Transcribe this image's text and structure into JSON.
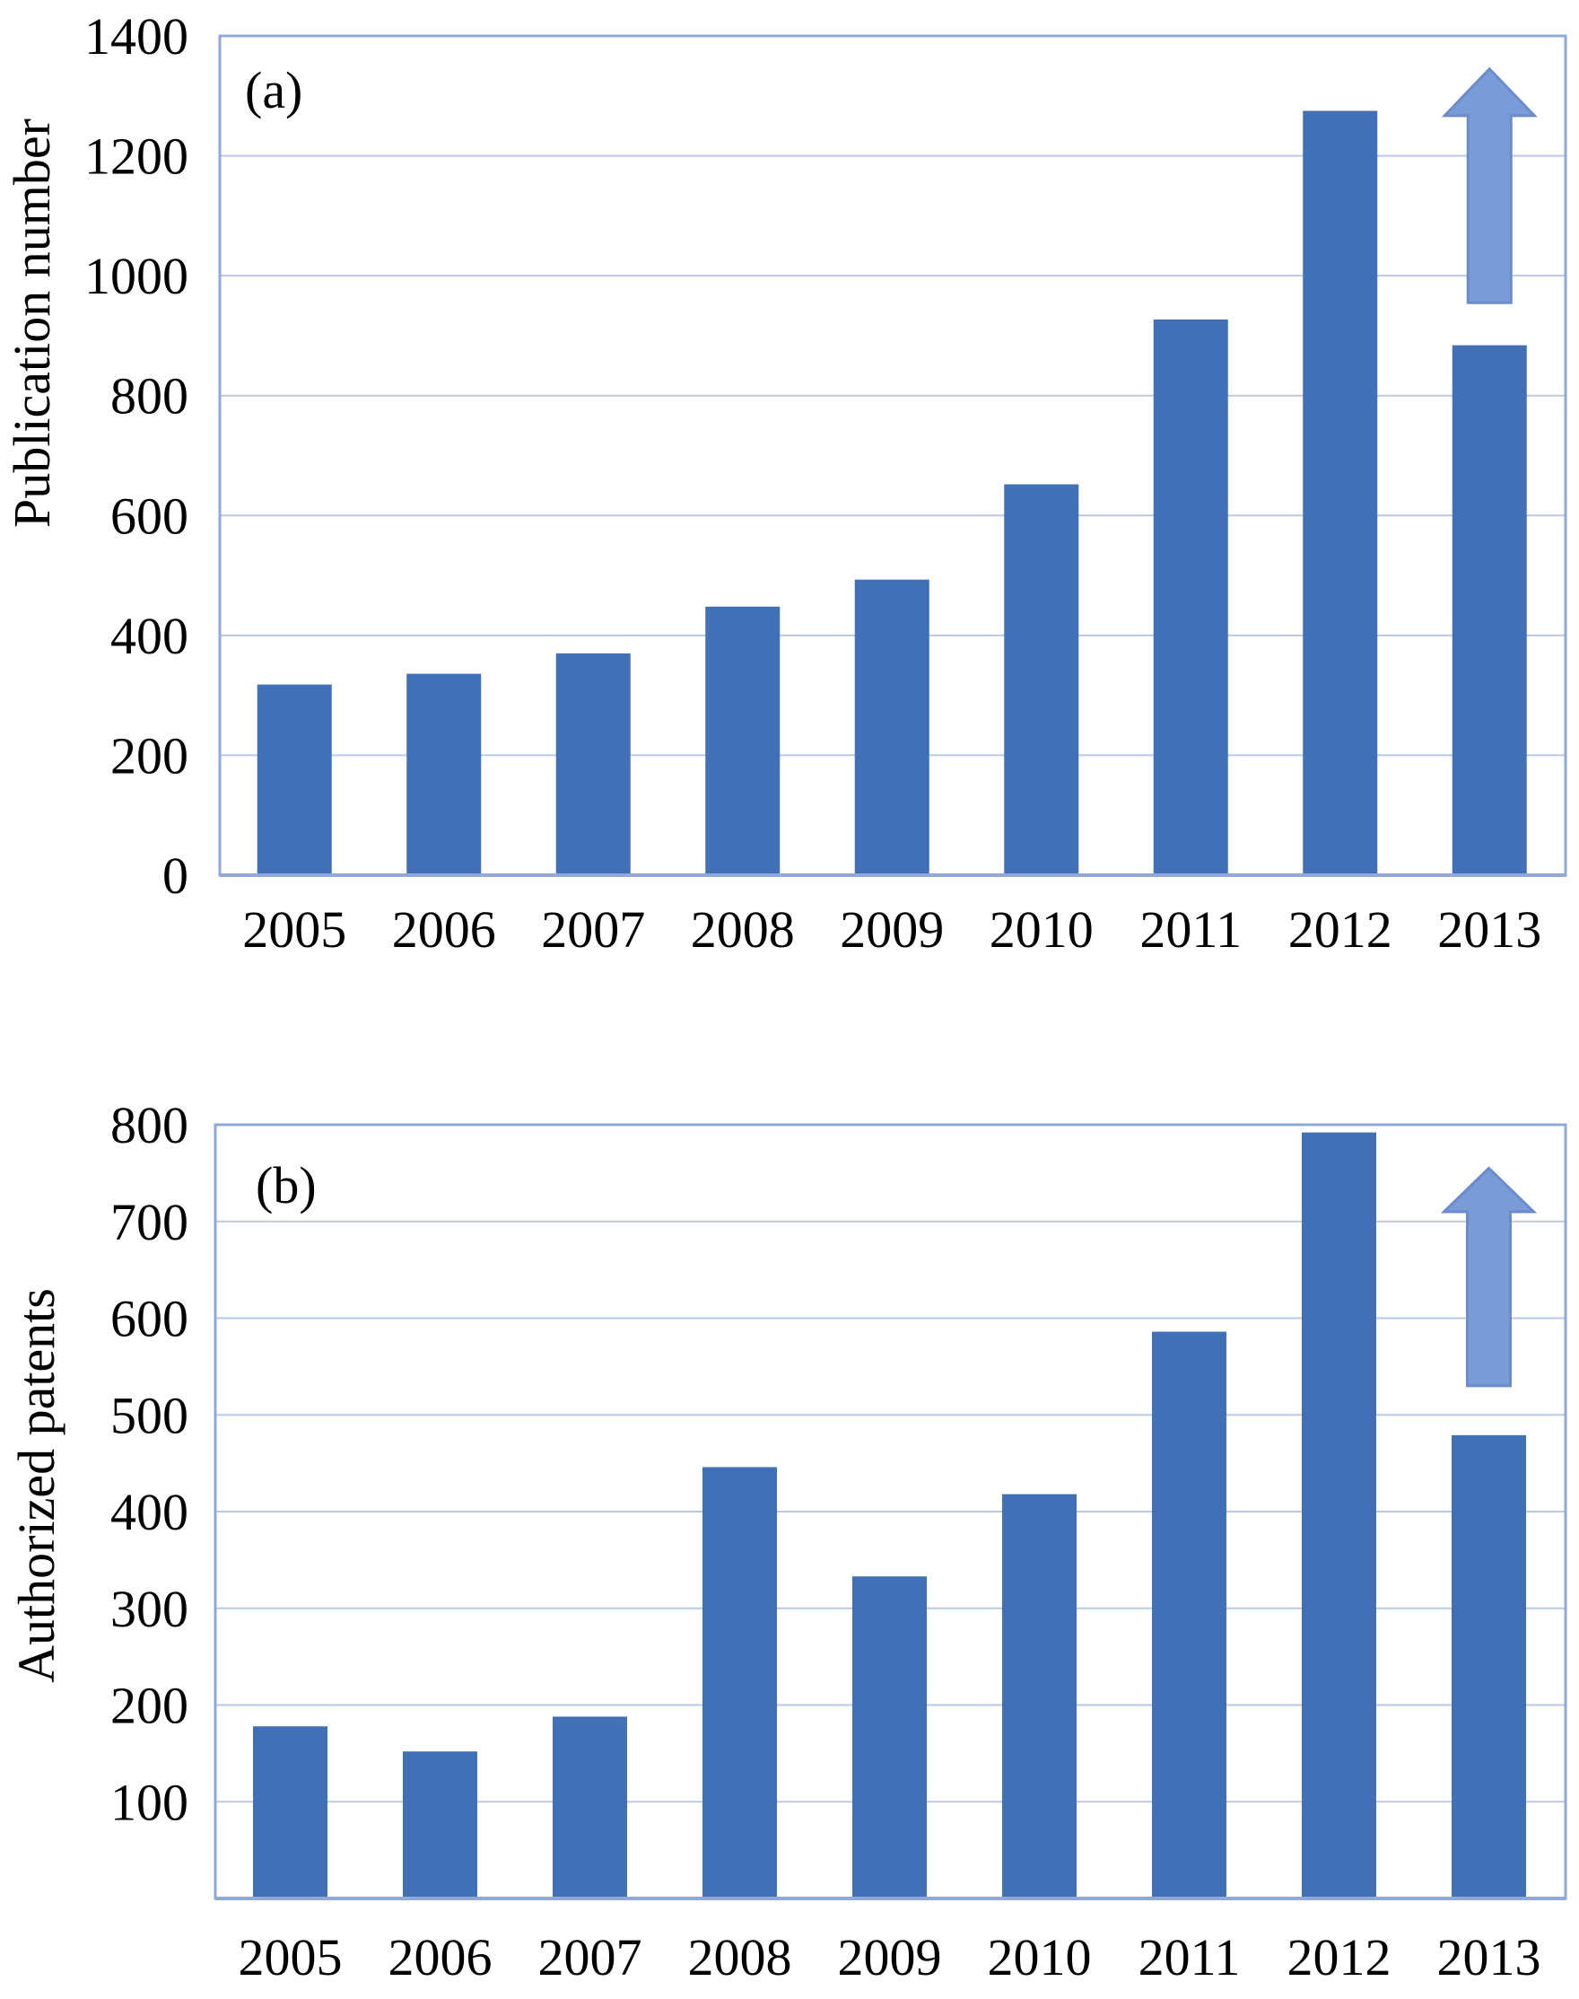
{
  "colors": {
    "bar": "#4170b6",
    "axis": "#8fa9d8",
    "grid": "#b9c9e8",
    "arrow_fill": "#7b9bd6",
    "arrow_stroke": "#6a8ccb"
  },
  "chart_data": [
    {
      "type": "bar",
      "panel_label": "(a)",
      "categories": [
        "2005",
        "2006",
        "2007",
        "2008",
        "2009",
        "2010",
        "2011",
        "2012",
        "2013"
      ],
      "values": [
        318,
        336,
        370,
        448,
        493,
        652,
        927,
        1275,
        884
      ],
      "xlabel": "",
      "ylabel": "Publication number",
      "ylim": [
        0,
        1400
      ],
      "yticks": [
        "0",
        "200",
        "400",
        "600",
        "800",
        "1000",
        "1200",
        "1400"
      ],
      "grid": true,
      "annotation": "up-arrow above 2013 bar",
      "arrow_range": [
        955,
        1345
      ]
    },
    {
      "type": "bar",
      "panel_label": "(b)",
      "categories": [
        "2005",
        "2006",
        "2007",
        "2008",
        "2009",
        "2010",
        "2011",
        "2012",
        "2013"
      ],
      "values": [
        178,
        152,
        188,
        446,
        333,
        418,
        586,
        792,
        479
      ],
      "xlabel": "",
      "ylabel": "Authorized patents",
      "ylim": [
        0,
        800
      ],
      "yticks": [
        "100",
        "200",
        "300",
        "400",
        "500",
        "600",
        "700",
        "800"
      ],
      "grid": true,
      "annotation": "up-arrow above 2013 bar",
      "arrow_range": [
        530,
        755
      ]
    }
  ]
}
